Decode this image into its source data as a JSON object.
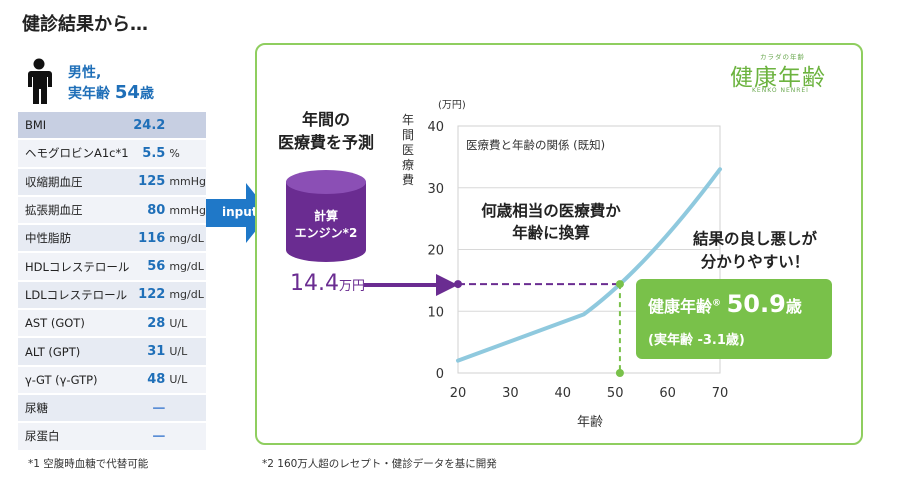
{
  "header": {
    "title": "健診結果から…"
  },
  "profile": {
    "line1": "男性,",
    "line2_prefix": "実年齢 ",
    "age": "54",
    "age_unit": "歳"
  },
  "lab_table": [
    {
      "label": "BMI",
      "value": "24.2",
      "unit": ""
    },
    {
      "label": "ヘモグロビンA1c*1",
      "value": "5.5",
      "unit": "%"
    },
    {
      "label": "収縮期血圧",
      "value": "125",
      "unit": "mmHg"
    },
    {
      "label": "拡張期血圧",
      "value": "80",
      "unit": "mmHg"
    },
    {
      "label": "中性脂肪",
      "value": "116",
      "unit": "mg/dL"
    },
    {
      "label": "HDLコレステロール",
      "value": "56",
      "unit": "mg/dL"
    },
    {
      "label": "LDLコレステロール",
      "value": "122",
      "unit": "mg/dL"
    },
    {
      "label": "AST (GOT)",
      "value": "28",
      "unit": "U/L"
    },
    {
      "label": "ALT (GPT)",
      "value": "31",
      "unit": "U/L"
    },
    {
      "label": "γ-GT (γ-GTP)",
      "value": "48",
      "unit": "U/L"
    },
    {
      "label": "尿糖",
      "value": "—",
      "unit": ""
    },
    {
      "label": "尿蛋白",
      "value": "—",
      "unit": ""
    }
  ],
  "footnotes": {
    "note1": "*1 空腹時血糖で代替可能",
    "note2": "*2 160万人超のレセプト・健診データを基に開発"
  },
  "arrow": {
    "input_label": "input"
  },
  "logo": {
    "small": "カラダの年齢",
    "main": "健康年齢",
    "sub": "KENKO NENREI"
  },
  "predict": {
    "line1": "年間の",
    "line2": "医療費を予測"
  },
  "engine": {
    "line1": "計算",
    "line2": "エンジン*2"
  },
  "cost": {
    "value": "14.4",
    "unit": "万円"
  },
  "callouts": {
    "convert_line1": "何歳相当の医療費か",
    "convert_line2": "年齢に換算",
    "result_line1": "結果の良し悪しが",
    "result_line2": "分かりやすい！"
  },
  "result": {
    "label": "健康年齢",
    "mark": "®",
    "value": "50.9",
    "unit": "歳",
    "sub": "(実年齢 -3.1歳)"
  },
  "colors": {
    "blue": "#1f6fb8",
    "green": "#79c14a",
    "purple": "#6a2c91",
    "line": "#8fc9de"
  },
  "chart_data": {
    "type": "line",
    "title": "医療費と年齢の関係 (既知)",
    "xlabel": "年齢",
    "ylabel": "年間医療費",
    "yunit": "(万円)",
    "xlim": [
      20,
      70
    ],
    "ylim": [
      0,
      40
    ],
    "xticks": [
      20,
      30,
      40,
      50,
      60,
      70
    ],
    "yticks": [
      0,
      10,
      20,
      30,
      40
    ],
    "series": [
      {
        "x": [
          20,
          44,
          50.9,
          60,
          70
        ],
        "y": [
          2,
          9.5,
          14.4,
          22,
          33
        ]
      }
    ],
    "marker": {
      "x": 50.9,
      "y": 14.4
    }
  }
}
